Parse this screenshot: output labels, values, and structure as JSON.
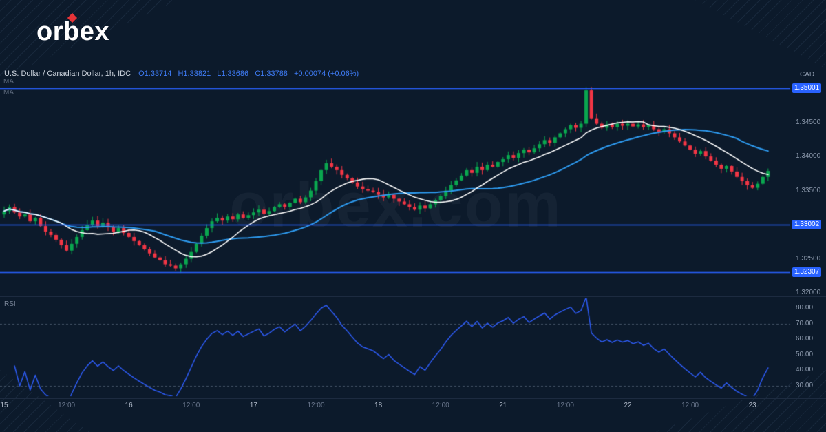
{
  "logo": {
    "text": "orbex"
  },
  "header": {
    "symbol": "U.S. Dollar / Canadian Dollar, 1h, IDC",
    "open": "O1.33714",
    "high": "H1.33821",
    "low": "L1.33686",
    "close": "C1.33788",
    "change": "+0.00074 (+0.06%)"
  },
  "indicators": {
    "ma1": "MA",
    "ma2": "MA",
    "rsi": "RSI"
  },
  "watermark": "orbex.com",
  "axis": {
    "currency": "CAD",
    "price_ticks": [
      {
        "label": "1.34500",
        "value": 1.345
      },
      {
        "label": "1.34000",
        "value": 1.34
      },
      {
        "label": "1.33500",
        "value": 1.335
      },
      {
        "label": "1.32500",
        "value": 1.325
      },
      {
        "label": "1.32000",
        "value": 1.32
      }
    ],
    "level_badges": [
      {
        "label": "1.35001",
        "value": 1.35001
      },
      {
        "label": "1.33002",
        "value": 1.33002
      },
      {
        "label": "1.32307",
        "value": 1.32307
      }
    ],
    "rsi_ticks": [
      {
        "label": "80.00",
        "value": 80
      },
      {
        "label": "70.00",
        "value": 70
      },
      {
        "label": "60.00",
        "value": 60
      },
      {
        "label": "50.00",
        "value": 50
      },
      {
        "label": "40.00",
        "value": 40
      },
      {
        "label": "30.00",
        "value": 30
      }
    ],
    "time_ticks": [
      {
        "label": "15",
        "index": 0,
        "major": true
      },
      {
        "label": "12:00",
        "index": 12,
        "major": false
      },
      {
        "label": "16",
        "index": 24,
        "major": true
      },
      {
        "label": "12:00",
        "index": 36,
        "major": false
      },
      {
        "label": "17",
        "index": 48,
        "major": true
      },
      {
        "label": "12:00",
        "index": 60,
        "major": false
      },
      {
        "label": "18",
        "index": 72,
        "major": true
      },
      {
        "label": "12:00",
        "index": 84,
        "major": false
      },
      {
        "label": "21",
        "index": 96,
        "major": true
      },
      {
        "label": "12:00",
        "index": 108,
        "major": false
      },
      {
        "label": "22",
        "index": 120,
        "major": true
      },
      {
        "label": "12:00",
        "index": 132,
        "major": false
      },
      {
        "label": "23",
        "index": 144,
        "major": true
      }
    ]
  },
  "chart_data": {
    "type": "candlestick",
    "title": "U.S. Dollar / Canadian Dollar",
    "timeframe": "1h",
    "levels": [
      1.35001,
      1.33002,
      1.32307
    ],
    "overlays": [
      {
        "name": "MA fast",
        "period": 12,
        "color": "#ffffff"
      },
      {
        "name": "MA slow",
        "period": 30,
        "color": "#2e9bf0"
      }
    ],
    "rsi": {
      "period": 14,
      "upper_band": 70,
      "lower_band": 30
    },
    "colors": {
      "up": "#0aa74f",
      "down": "#f23645",
      "level": "#2962ff",
      "rsi": "#2e5cf6",
      "rsi_band": "rgba(140,155,178,0.45)"
    },
    "closes": [
      1.332,
      1.3326,
      1.3318,
      1.3312,
      1.3315,
      1.3305,
      1.331,
      1.3298,
      1.329,
      1.3285,
      1.3278,
      1.327,
      1.3262,
      1.3272,
      1.3282,
      1.3292,
      1.33,
      1.3306,
      1.3298,
      1.3303,
      1.3296,
      1.329,
      1.3295,
      1.3288,
      1.3282,
      1.3276,
      1.327,
      1.3264,
      1.3258,
      1.3252,
      1.3248,
      1.3242,
      1.324,
      1.3236,
      1.3242,
      1.325,
      1.326,
      1.3272,
      1.3284,
      1.3295,
      1.3305,
      1.331,
      1.3306,
      1.3312,
      1.3308,
      1.3315,
      1.331,
      1.3314,
      1.3318,
      1.3322,
      1.3316,
      1.332,
      1.3326,
      1.333,
      1.3326,
      1.3332,
      1.3338,
      1.3333,
      1.334,
      1.335,
      1.3364,
      1.338,
      1.339,
      1.3385,
      1.338,
      1.3373,
      1.3368,
      1.3362,
      1.3356,
      1.3352,
      1.335,
      1.3348,
      1.3344,
      1.334,
      1.3344,
      1.3338,
      1.3334,
      1.333,
      1.3326,
      1.3322,
      1.3328,
      1.3324,
      1.333,
      1.3336,
      1.3342,
      1.335,
      1.3358,
      1.3365,
      1.3372,
      1.338,
      1.3376,
      1.3385,
      1.338,
      1.3388,
      1.3385,
      1.3392,
      1.3396,
      1.3402,
      1.3398,
      1.3405,
      1.341,
      1.3406,
      1.3412,
      1.3418,
      1.3424,
      1.342,
      1.3428,
      1.3434,
      1.344,
      1.3446,
      1.3442,
      1.3448,
      1.3497,
      1.3456,
      1.3448,
      1.3442,
      1.3447,
      1.3443,
      1.3448,
      1.3445,
      1.3448,
      1.3444,
      1.3447,
      1.3443,
      1.3446,
      1.344,
      1.3436,
      1.344,
      1.3434,
      1.3428,
      1.3422,
      1.3416,
      1.341,
      1.3404,
      1.3408,
      1.34,
      1.3394,
      1.3388,
      1.3382,
      1.3386,
      1.3378,
      1.337,
      1.3364,
      1.3358,
      1.3354,
      1.336,
      1.337,
      1.33788
    ]
  }
}
